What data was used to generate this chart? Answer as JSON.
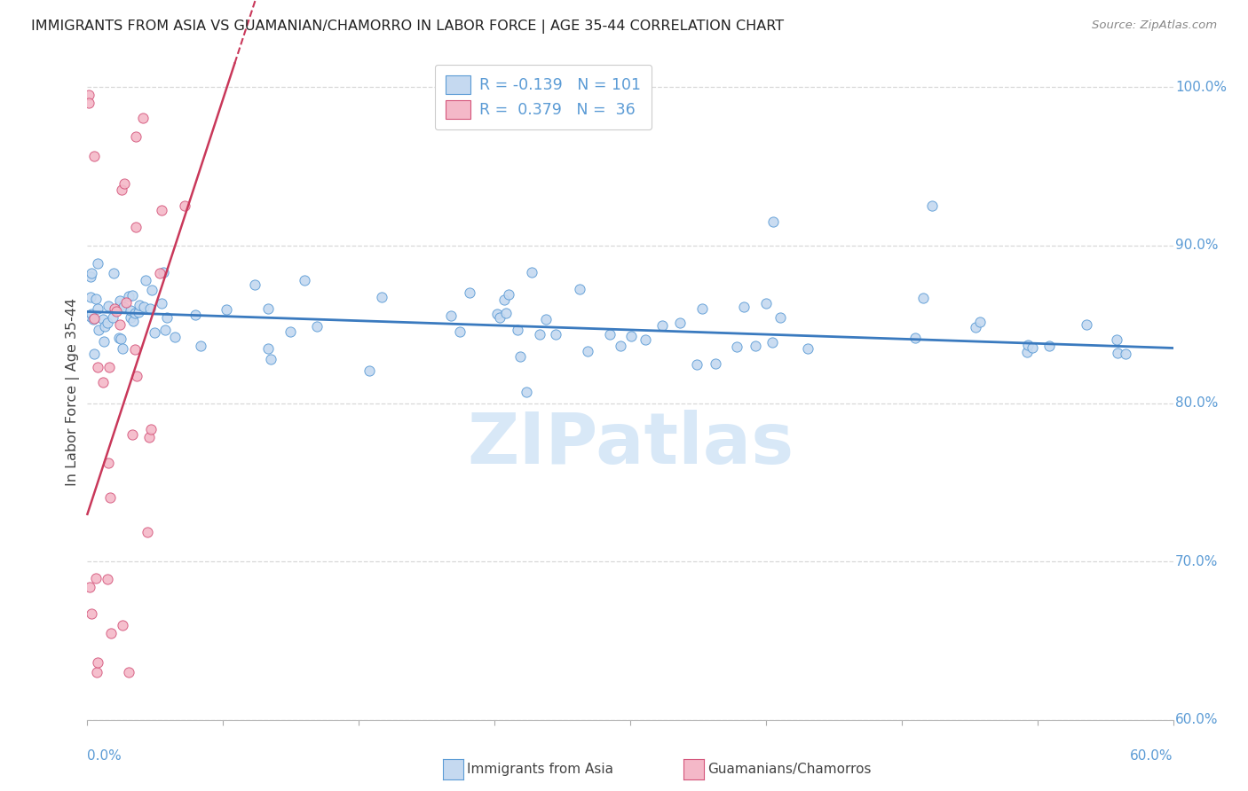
{
  "title": "IMMIGRANTS FROM ASIA VS GUAMANIAN/CHAMORRO IN LABOR FORCE | AGE 35-44 CORRELATION CHART",
  "source": "Source: ZipAtlas.com",
  "ylabel": "In Labor Force | Age 35-44",
  "y_ticks": [
    60.0,
    70.0,
    80.0,
    90.0,
    100.0
  ],
  "x_min": 0.0,
  "x_max": 60.0,
  "y_min": 60.0,
  "y_max": 101.5,
  "blue_R": -0.139,
  "blue_N": 101,
  "pink_R": 0.379,
  "pink_N": 36,
  "blue_fill_color": "#c5d9f0",
  "blue_edge_color": "#5b9bd5",
  "pink_fill_color": "#f4b8c8",
  "pink_edge_color": "#d4547a",
  "blue_line_color": "#3a7abf",
  "pink_line_color": "#c9385a",
  "background_color": "#ffffff",
  "grid_color": "#d8d8d8",
  "watermark_color": "#c8dff5",
  "right_tick_color": "#5b9bd5",
  "title_color": "#222222",
  "source_color": "#888888",
  "axis_label_color": "#444444",
  "bottom_label_color": "#5b9bd5"
}
